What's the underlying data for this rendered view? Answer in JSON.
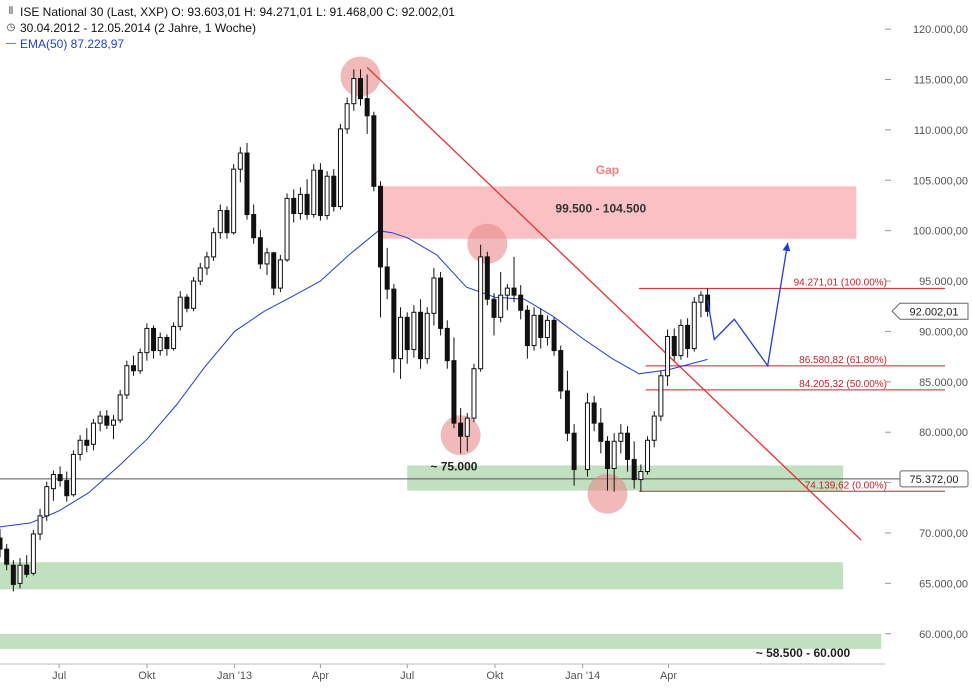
{
  "legend": {
    "title_line": "ISE National 30 (Last, XXP)  O: 93.603,01  H: 94.271,01  L: 91.468,00  C: 92.002,01",
    "range_line": "30.04.2012 - 12.05.2014 (2 Jahre, 1 Woche)",
    "ema_line": "EMA(50)  87.228,97"
  },
  "chart_data": {
    "type": "candlestick",
    "title": "ISE National 30 (Last, XXP)",
    "period": "30.04.2012 - 12.05.2014 (2 Jahre, 1 Woche)",
    "ohlc_last": {
      "open": 93603.01,
      "high": 94271.01,
      "low": 91468.0,
      "close": 92002.01
    },
    "ylim": [
      57000,
      121500
    ],
    "y_ticks": [
      60000,
      65000,
      70000,
      75000,
      80000,
      85000,
      90000,
      95000,
      100000,
      105000,
      110000,
      115000,
      120000
    ],
    "y_tick_labels": [
      "60.000,00",
      "65.000,00",
      "70.000,00",
      "75.000,00",
      "80.000,00",
      "85.000,00",
      "90.000,00",
      "95.000,00",
      "100.000,00",
      "105.000,00",
      "110.000,00",
      "115.000,00",
      "120.000,00"
    ],
    "x_ticks": [
      {
        "label": "Jul",
        "date": "2012-07-01"
      },
      {
        "label": "Okt",
        "date": "2012-10-01"
      },
      {
        "label": "Jan '13",
        "date": "2013-01-01"
      },
      {
        "label": "Apr",
        "date": "2013-04-01"
      },
      {
        "label": "Jul",
        "date": "2013-07-01"
      },
      {
        "label": "Okt",
        "date": "2013-10-01"
      },
      {
        "label": "Jan '14",
        "date": "2014-01-01"
      },
      {
        "label": "Apr",
        "date": "2014-04-01"
      }
    ],
    "x_range": [
      "2012-04-30",
      "2014-11-14"
    ],
    "candles": [
      [
        "2012-04-30",
        69500,
        70400,
        67600,
        68400
      ],
      [
        "2012-05-07",
        68400,
        68900,
        66300,
        66900
      ],
      [
        "2012-05-14",
        66800,
        67300,
        64200,
        64900
      ],
      [
        "2012-05-21",
        65000,
        67500,
        64500,
        66800
      ],
      [
        "2012-05-28",
        66800,
        67800,
        65600,
        65900
      ],
      [
        "2012-06-04",
        66000,
        70300,
        65800,
        69900
      ],
      [
        "2012-06-11",
        69900,
        72400,
        69300,
        71700
      ],
      [
        "2012-06-18",
        71700,
        75100,
        71200,
        74600
      ],
      [
        "2012-06-25",
        74400,
        76200,
        73200,
        75800
      ],
      [
        "2012-07-02",
        75800,
        76600,
        74600,
        75200
      ],
      [
        "2012-07-09",
        75200,
        76100,
        73100,
        73700
      ],
      [
        "2012-07-16",
        73800,
        78200,
        73600,
        77800
      ],
      [
        "2012-07-23",
        77800,
        79700,
        77200,
        79200
      ],
      [
        "2012-07-30",
        79200,
        80400,
        78000,
        78700
      ],
      [
        "2012-08-06",
        78800,
        81300,
        78200,
        80900
      ],
      [
        "2012-08-13",
        80900,
        82100,
        80100,
        81600
      ],
      [
        "2012-08-20",
        81600,
        82200,
        80300,
        80700
      ],
      [
        "2012-08-27",
        80700,
        81700,
        79300,
        81200
      ],
      [
        "2012-09-03",
        81200,
        84200,
        80900,
        83700
      ],
      [
        "2012-09-10",
        83700,
        87100,
        83300,
        86600
      ],
      [
        "2012-09-17",
        86600,
        87600,
        85600,
        86100
      ],
      [
        "2012-09-24",
        86100,
        88300,
        85800,
        87900
      ],
      [
        "2012-10-01",
        87900,
        90800,
        87100,
        90300
      ],
      [
        "2012-10-08",
        90300,
        90600,
        87300,
        88100
      ],
      [
        "2012-10-15",
        88100,
        89900,
        87600,
        89400
      ],
      [
        "2012-10-22",
        89400,
        89700,
        87600,
        88300
      ],
      [
        "2012-10-29",
        88300,
        90900,
        88100,
        90500
      ],
      [
        "2012-11-05",
        90500,
        94000,
        90100,
        93400
      ],
      [
        "2012-11-12",
        93400,
        93700,
        91900,
        92300
      ],
      [
        "2012-11-19",
        92300,
        95400,
        92000,
        95000
      ],
      [
        "2012-11-26",
        95000,
        96800,
        94600,
        96300
      ],
      [
        "2012-12-03",
        96300,
        97900,
        95600,
        97400
      ],
      [
        "2012-12-10",
        97400,
        100300,
        97000,
        99800
      ],
      [
        "2012-12-17",
        99800,
        102600,
        99200,
        102000
      ],
      [
        "2012-12-24",
        102000,
        102400,
        99200,
        99800
      ],
      [
        "2012-12-31",
        99800,
        106600,
        99600,
        106100
      ],
      [
        "2013-01-07",
        106100,
        108300,
        104800,
        107700
      ],
      [
        "2013-01-14",
        107700,
        108700,
        101100,
        101600
      ],
      [
        "2013-01-21",
        101600,
        102600,
        98700,
        99300
      ],
      [
        "2013-01-28",
        99300,
        100100,
        96200,
        96700
      ],
      [
        "2013-02-04",
        96700,
        98300,
        95600,
        97800
      ],
      [
        "2013-02-11",
        97800,
        97900,
        93600,
        94300
      ],
      [
        "2013-02-18",
        94300,
        97600,
        93900,
        97100
      ],
      [
        "2013-02-25",
        97100,
        103700,
        96900,
        103200
      ],
      [
        "2013-03-04",
        103200,
        104100,
        100800,
        101700
      ],
      [
        "2013-03-11",
        101700,
        104300,
        101100,
        103600
      ],
      [
        "2013-03-18",
        103600,
        105100,
        101100,
        101600
      ],
      [
        "2013-03-25",
        101600,
        106600,
        101300,
        106000
      ],
      [
        "2013-04-01",
        106000,
        106700,
        101000,
        101500
      ],
      [
        "2013-04-08",
        101500,
        105900,
        101100,
        105400
      ],
      [
        "2013-04-15",
        105400,
        106100,
        101900,
        102400
      ],
      [
        "2013-04-22",
        102400,
        110600,
        102100,
        110100
      ],
      [
        "2013-04-29",
        110100,
        113200,
        109600,
        112600
      ],
      [
        "2013-05-06",
        112600,
        116000,
        111900,
        115100
      ],
      [
        "2013-05-13",
        115100,
        116000,
        112400,
        113100
      ],
      [
        "2013-05-20",
        113100,
        115500,
        109600,
        111400
      ],
      [
        "2013-05-27",
        111400,
        111800,
        103900,
        104400
      ],
      [
        "2013-06-03",
        104400,
        104900,
        91400,
        96400
      ],
      [
        "2013-06-10",
        96400,
        98300,
        93200,
        94200
      ],
      [
        "2013-06-17",
        94200,
        94700,
        85900,
        87300
      ],
      [
        "2013-06-24",
        87300,
        92400,
        85300,
        91400
      ],
      [
        "2013-07-01",
        91400,
        91900,
        86800,
        88200
      ],
      [
        "2013-07-08",
        88200,
        92600,
        87400,
        91900
      ],
      [
        "2013-07-15",
        91900,
        93200,
        86300,
        87300
      ],
      [
        "2013-07-22",
        87300,
        92400,
        86800,
        91800
      ],
      [
        "2013-07-29",
        91800,
        96300,
        90600,
        95300
      ],
      [
        "2013-08-05",
        95300,
        95900,
        89600,
        90300
      ],
      [
        "2013-08-12",
        90300,
        91100,
        86300,
        87100
      ],
      [
        "2013-08-19",
        87100,
        89400,
        80400,
        80900
      ],
      [
        "2013-08-26",
        80900,
        82400,
        77900,
        79600
      ],
      [
        "2013-09-02",
        79600,
        81900,
        78100,
        81400
      ],
      [
        "2013-09-09",
        81400,
        86800,
        81000,
        86300
      ],
      [
        "2013-09-16",
        86300,
        98600,
        86000,
        97400
      ],
      [
        "2013-09-23",
        97400,
        97900,
        92600,
        93200
      ],
      [
        "2013-09-30",
        93200,
        93800,
        89600,
        91400
      ],
      [
        "2013-10-07",
        91400,
        95900,
        90900,
        93600
      ],
      [
        "2013-10-14",
        93600,
        94700,
        92100,
        94300
      ],
      [
        "2013-10-21",
        94300,
        97400,
        92900,
        93600
      ],
      [
        "2013-10-28",
        93600,
        94600,
        91200,
        92100
      ],
      [
        "2013-11-04",
        92100,
        92600,
        87300,
        88600
      ],
      [
        "2013-11-11",
        88600,
        92400,
        88100,
        91600
      ],
      [
        "2013-11-18",
        91600,
        92300,
        88300,
        89400
      ],
      [
        "2013-11-25",
        89400,
        91600,
        88600,
        91100
      ],
      [
        "2013-12-02",
        91100,
        91400,
        87600,
        88100
      ],
      [
        "2013-12-09",
        88100,
        88600,
        83300,
        84100
      ],
      [
        "2013-12-16",
        84100,
        86100,
        79100,
        79900
      ],
      [
        "2013-12-23",
        79900,
        80800,
        74700,
        76300
      ],
      [
        "2014-01-06",
        76300,
        83900,
        75600,
        82900
      ],
      [
        "2014-01-13",
        82900,
        83600,
        80100,
        80900
      ],
      [
        "2014-01-20",
        80900,
        82400,
        77900,
        79100
      ],
      [
        "2014-01-27",
        79100,
        79600,
        74200,
        76400
      ],
      [
        "2014-02-03",
        76400,
        79900,
        74100,
        79100
      ],
      [
        "2014-02-10",
        79100,
        80800,
        77900,
        79900
      ],
      [
        "2014-02-17",
        79900,
        80600,
        76100,
        77300
      ],
      [
        "2014-02-24",
        77300,
        79100,
        74400,
        75300
      ],
      [
        "2014-03-03",
        75300,
        76800,
        74100,
        76100
      ],
      [
        "2014-03-10",
        76100,
        79600,
        75800,
        79200
      ],
      [
        "2014-03-17",
        79200,
        82100,
        78500,
        81600
      ],
      [
        "2014-03-24",
        81600,
        86100,
        81100,
        85600
      ],
      [
        "2014-03-31",
        85600,
        90200,
        84600,
        89500
      ],
      [
        "2014-04-07",
        89500,
        90300,
        87100,
        87600
      ],
      [
        "2014-04-14",
        87600,
        91200,
        87200,
        90600
      ],
      [
        "2014-04-21",
        90600,
        91300,
        87400,
        88300
      ],
      [
        "2014-04-28",
        88300,
        93400,
        88000,
        92900
      ],
      [
        "2014-05-05",
        92900,
        94000,
        91400,
        93600
      ],
      [
        "2014-05-12",
        93603.01,
        94271.01,
        91468.0,
        92002.01
      ]
    ],
    "ema": {
      "name": "EMA(50)",
      "last": 87228.97,
      "points": [
        [
          "2012-04-30",
          70600
        ],
        [
          "2012-06-01",
          71000
        ],
        [
          "2012-07-01",
          72200
        ],
        [
          "2012-08-01",
          74000
        ],
        [
          "2012-09-01",
          76600
        ],
        [
          "2012-10-01",
          79300
        ],
        [
          "2012-11-01",
          82700
        ],
        [
          "2012-12-01",
          86500
        ],
        [
          "2013-01-01",
          90000
        ],
        [
          "2013-02-01",
          92000
        ],
        [
          "2013-03-01",
          93400
        ],
        [
          "2013-04-01",
          95000
        ],
        [
          "2013-05-01",
          97600
        ],
        [
          "2013-06-01",
          100000
        ],
        [
          "2013-06-15",
          99800
        ],
        [
          "2013-07-01",
          99300
        ],
        [
          "2013-08-01",
          97600
        ],
        [
          "2013-09-01",
          94400
        ],
        [
          "2013-10-01",
          93400
        ],
        [
          "2013-11-01",
          93200
        ],
        [
          "2013-12-01",
          91500
        ],
        [
          "2014-01-01",
          89300
        ],
        [
          "2014-02-01",
          87300
        ],
        [
          "2014-03-01",
          85800
        ],
        [
          "2014-04-01",
          86200
        ],
        [
          "2014-05-12",
          87229
        ]
      ]
    },
    "current_price": {
      "value": 92002.01,
      "label": "92.002,01"
    },
    "hline": {
      "value": 75372.0,
      "label": "75.372,00"
    },
    "fib_levels": [
      {
        "value": 94271.01,
        "label": "94.271,01 (100.00%)"
      },
      {
        "value": 86580.82,
        "label": "86.580,82 (61.80%)"
      },
      {
        "value": 84205.32,
        "label": "84.205,32 (50.00%)"
      },
      {
        "value": 74139.62,
        "label": "74.139,62 (0.00%)"
      }
    ],
    "zones": [
      {
        "kind": "resistance",
        "color": "#f8a8ac",
        "from": "2013-06-01",
        "to": "2014-10-15",
        "low": 99200,
        "high": 104400
      },
      {
        "kind": "support",
        "color": "#a8d4a8",
        "from": "2013-07-01",
        "to": "2014-10-01",
        "low": 74200,
        "high": 76700
      },
      {
        "kind": "support",
        "color": "#a8d4a8",
        "from": "2012-04-30",
        "to": "2014-10-01",
        "low": 64400,
        "high": 67100
      },
      {
        "kind": "support",
        "color": "#a8d4a8",
        "from": "2012-04-30",
        "to": "2014-11-10",
        "low": 58500,
        "high": 60000
      }
    ],
    "trendline": {
      "color": "#e83030",
      "from": [
        "2013-05-20",
        116200
      ],
      "to": [
        "2014-10-20",
        69300
      ]
    },
    "projection": {
      "color": "#1f3fd1",
      "points": [
        [
          "2014-05-12",
          93100
        ],
        [
          "2014-05-19",
          89200
        ],
        [
          "2014-06-09",
          91200
        ],
        [
          "2014-07-14",
          86600
        ],
        [
          "2014-08-04",
          98800
        ]
      ]
    },
    "highlight_circles": [
      {
        "date": "2013-05-13",
        "value": 115300
      },
      {
        "date": "2013-09-23",
        "value": 98700
      },
      {
        "date": "2013-08-26",
        "value": 79700
      },
      {
        "date": "2014-01-27",
        "value": 73900
      }
    ],
    "annotations": [
      {
        "text": "Gap",
        "date": "2014-01-27",
        "value": 105600,
        "color": "#f08080",
        "weight": "bold"
      },
      {
        "text": "99.500 - 104.500",
        "date": "2014-01-20",
        "value": 101800,
        "color": "#333333",
        "weight": "bold"
      },
      {
        "text": "~ 75.000",
        "date": "2013-08-19",
        "value": 76200,
        "color": "#222222",
        "weight": "bold"
      },
      {
        "text": "~ 58.500 - 60.000",
        "date": "2014-08-20",
        "value": 57700,
        "color": "#222222",
        "weight": "bold"
      }
    ]
  }
}
